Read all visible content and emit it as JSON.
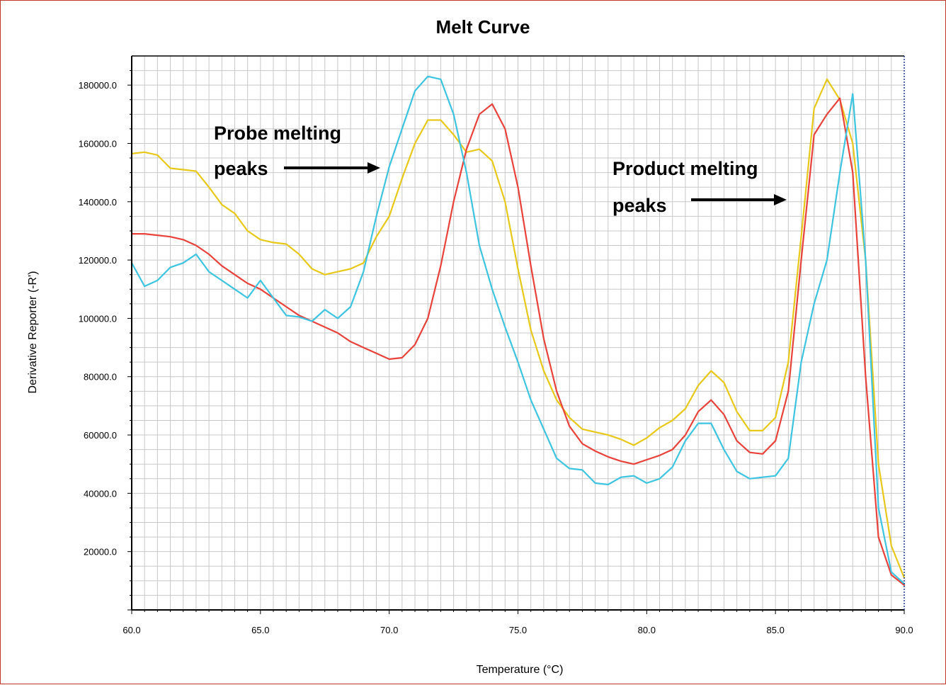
{
  "chart_data": {
    "type": "line",
    "title": "Melt Curve",
    "xlabel": "Temperature (°C)",
    "ylabel": "Derivative Reporter (-R')",
    "xlim": [
      60,
      90
    ],
    "ylim": [
      0,
      190000
    ],
    "x_ticks": [
      60,
      65,
      70,
      75,
      80,
      85,
      90
    ],
    "x_tick_labels": [
      "60.0",
      "65.0",
      "70.0",
      "75.0",
      "80.0",
      "85.0",
      "90.0"
    ],
    "y_ticks": [
      20000,
      40000,
      60000,
      80000,
      100000,
      120000,
      140000,
      160000,
      180000
    ],
    "y_tick_labels": [
      "20000.0",
      "40000.0",
      "60000.0",
      "80000.0",
      "100000.0",
      "120000.0",
      "140000.0",
      "160000.0",
      "180000.0"
    ],
    "grid": true,
    "legend": "none",
    "annotations": [
      {
        "lines": [
          "Probe melting",
          "peaks"
        ],
        "arrow_direction": "right"
      },
      {
        "lines": [
          "Product melting",
          "peaks"
        ],
        "arrow_direction": "right"
      }
    ],
    "series": [
      {
        "color": "#e8c81a",
        "points": [
          [
            60,
            156500
          ],
          [
            60.5,
            157000
          ],
          [
            61,
            156000
          ],
          [
            61.5,
            151500
          ],
          [
            62,
            151000
          ],
          [
            62.5,
            150500
          ],
          [
            63,
            145000
          ],
          [
            63.5,
            139000
          ],
          [
            64,
            136000
          ],
          [
            64.5,
            130000
          ],
          [
            65,
            127000
          ],
          [
            65.5,
            126000
          ],
          [
            66,
            125500
          ],
          [
            66.5,
            122000
          ],
          [
            67,
            117000
          ],
          [
            67.5,
            115000
          ],
          [
            68,
            116000
          ],
          [
            68.5,
            117000
          ],
          [
            69,
            119000
          ],
          [
            69.5,
            128000
          ],
          [
            70,
            135000
          ],
          [
            70.5,
            148000
          ],
          [
            71,
            160000
          ],
          [
            71.5,
            168000
          ],
          [
            72,
            168000
          ],
          [
            72.5,
            163000
          ],
          [
            73,
            157000
          ],
          [
            73.5,
            158000
          ],
          [
            74,
            154000
          ],
          [
            74.5,
            140000
          ],
          [
            75,
            117000
          ],
          [
            75.5,
            96000
          ],
          [
            76,
            82000
          ],
          [
            76.5,
            72000
          ],
          [
            77,
            66000
          ],
          [
            77.5,
            62000
          ],
          [
            78,
            61000
          ],
          [
            78.5,
            60000
          ],
          [
            79,
            58500
          ],
          [
            79.5,
            56500
          ],
          [
            80,
            59000
          ],
          [
            80.5,
            62500
          ],
          [
            81,
            65000
          ],
          [
            81.5,
            69000
          ],
          [
            82,
            77000
          ],
          [
            82.5,
            82000
          ],
          [
            83,
            78000
          ],
          [
            83.5,
            68000
          ],
          [
            84,
            61500
          ],
          [
            84.5,
            61500
          ],
          [
            85,
            66000
          ],
          [
            85.5,
            85000
          ],
          [
            86,
            128000
          ],
          [
            86.5,
            172000
          ],
          [
            87,
            182000
          ],
          [
            87.5,
            175000
          ],
          [
            88,
            160000
          ],
          [
            88.5,
            120000
          ],
          [
            89,
            50000
          ],
          [
            89.5,
            22000
          ],
          [
            90,
            11000
          ]
        ]
      },
      {
        "color": "#e8423a",
        "points": [
          [
            60,
            129000
          ],
          [
            60.5,
            129000
          ],
          [
            61,
            128500
          ],
          [
            61.5,
            128000
          ],
          [
            62,
            127000
          ],
          [
            62.5,
            125000
          ],
          [
            63,
            122000
          ],
          [
            63.5,
            118000
          ],
          [
            64,
            115000
          ],
          [
            64.5,
            112000
          ],
          [
            65,
            110000
          ],
          [
            65.5,
            107000
          ],
          [
            66,
            104000
          ],
          [
            66.5,
            101000
          ],
          [
            67,
            99000
          ],
          [
            67.5,
            97000
          ],
          [
            68,
            95000
          ],
          [
            68.5,
            92000
          ],
          [
            69,
            90000
          ],
          [
            69.5,
            88000
          ],
          [
            70,
            86000
          ],
          [
            70.5,
            86500
          ],
          [
            71,
            91000
          ],
          [
            71.5,
            100000
          ],
          [
            72,
            118000
          ],
          [
            72.5,
            140000
          ],
          [
            73,
            158000
          ],
          [
            73.5,
            170000
          ],
          [
            74,
            173500
          ],
          [
            74.5,
            165000
          ],
          [
            75,
            145000
          ],
          [
            75.5,
            118000
          ],
          [
            76,
            93000
          ],
          [
            76.5,
            75000
          ],
          [
            77,
            63000
          ],
          [
            77.5,
            57000
          ],
          [
            78,
            54500
          ],
          [
            78.5,
            52500
          ],
          [
            79,
            51000
          ],
          [
            79.5,
            50000
          ],
          [
            80,
            51500
          ],
          [
            80.5,
            53000
          ],
          [
            81,
            55000
          ],
          [
            81.5,
            60000
          ],
          [
            82,
            68000
          ],
          [
            82.5,
            72000
          ],
          [
            83,
            67000
          ],
          [
            83.5,
            58000
          ],
          [
            84,
            54000
          ],
          [
            84.5,
            53500
          ],
          [
            85,
            58000
          ],
          [
            85.5,
            75000
          ],
          [
            86,
            120000
          ],
          [
            86.5,
            163000
          ],
          [
            87,
            170000
          ],
          [
            87.5,
            175500
          ],
          [
            88,
            150000
          ],
          [
            88.5,
            80000
          ],
          [
            89,
            25000
          ],
          [
            89.5,
            12000
          ],
          [
            90,
            8500
          ]
        ]
      },
      {
        "color": "#3dc4e0",
        "points": [
          [
            60,
            119000
          ],
          [
            60.5,
            111000
          ],
          [
            61,
            113000
          ],
          [
            61.5,
            117500
          ],
          [
            62,
            119000
          ],
          [
            62.5,
            122000
          ],
          [
            63,
            116000
          ],
          [
            63.5,
            113000
          ],
          [
            64,
            110000
          ],
          [
            64.5,
            107000
          ],
          [
            65,
            113000
          ],
          [
            65.5,
            107000
          ],
          [
            66,
            101000
          ],
          [
            66.5,
            100500
          ],
          [
            67,
            99000
          ],
          [
            67.5,
            103000
          ],
          [
            68,
            100000
          ],
          [
            68.5,
            104000
          ],
          [
            69,
            116000
          ],
          [
            69.5,
            135000
          ],
          [
            70,
            152000
          ],
          [
            70.5,
            165000
          ],
          [
            71,
            178000
          ],
          [
            71.5,
            183000
          ],
          [
            72,
            182000
          ],
          [
            72.5,
            170000
          ],
          [
            73,
            150000
          ],
          [
            73.5,
            125000
          ],
          [
            74,
            110000
          ],
          [
            74.5,
            97000
          ],
          [
            75,
            85000
          ],
          [
            75.5,
            72000
          ],
          [
            76,
            62000
          ],
          [
            76.5,
            52000
          ],
          [
            77,
            48500
          ],
          [
            77.5,
            48000
          ],
          [
            78,
            43500
          ],
          [
            78.5,
            43000
          ],
          [
            79,
            45500
          ],
          [
            79.5,
            46000
          ],
          [
            80,
            43500
          ],
          [
            80.5,
            45000
          ],
          [
            81,
            49000
          ],
          [
            81.5,
            58000
          ],
          [
            82,
            64000
          ],
          [
            82.5,
            64000
          ],
          [
            83,
            55000
          ],
          [
            83.5,
            47500
          ],
          [
            84,
            45000
          ],
          [
            84.5,
            45500
          ],
          [
            85,
            46000
          ],
          [
            85.5,
            52000
          ],
          [
            86,
            85000
          ],
          [
            86.5,
            105000
          ],
          [
            87,
            120000
          ],
          [
            87.5,
            150000
          ],
          [
            88,
            177000
          ],
          [
            88.5,
            120000
          ],
          [
            89,
            35000
          ],
          [
            89.5,
            13000
          ],
          [
            90,
            9000
          ]
        ]
      }
    ]
  }
}
